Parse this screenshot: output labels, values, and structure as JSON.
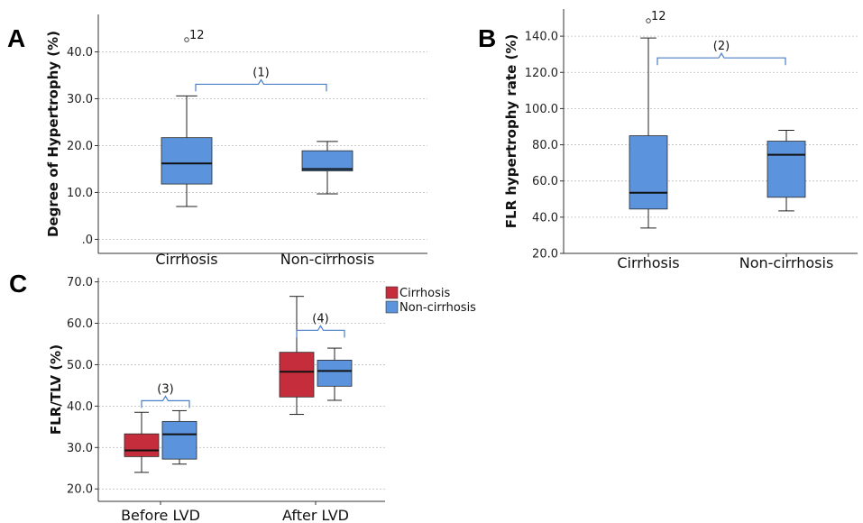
{
  "colors": {
    "cirrhosis": "#c62d3c",
    "non_cirrhosis": "#5b93dc",
    "bracket": "#4a7fc8"
  },
  "chart_data": [
    {
      "panel": "A",
      "type": "box",
      "ylabel": "Degree of Hypertrophy (%)",
      "ylim": [
        -3,
        48
      ],
      "yticks": [
        ".0",
        "10.0",
        "20.0",
        "30.0",
        "40.0"
      ],
      "ytick_values": [
        0,
        10,
        20,
        30,
        40
      ],
      "categories": [
        "Cirrhosis",
        "Non-cirrhosis"
      ],
      "boxes": [
        {
          "min": 7.0,
          "q1": 11.8,
          "median": 16.2,
          "q3": 21.7,
          "max": 30.6,
          "color": "non_cirrhosis"
        },
        {
          "min": 9.7,
          "q1": 14.6,
          "median": 15.0,
          "q3": 18.9,
          "max": 20.9,
          "color": "non_cirrhosis"
        }
      ],
      "outliers": [
        {
          "category": 0,
          "value": 42.6,
          "label": "12"
        }
      ],
      "brackets": [
        {
          "from": 0,
          "to": 1,
          "y": 33.1,
          "label": "(1)"
        }
      ]
    },
    {
      "panel": "B",
      "type": "box",
      "ylabel": "FLR hypertrophy rate (%)",
      "ylim": [
        20,
        155
      ],
      "yticks": [
        "20.0",
        "40.0",
        "60.0",
        "80.0",
        "100.0",
        "120.0",
        "140.0"
      ],
      "ytick_values": [
        20,
        40,
        60,
        80,
        100,
        120,
        140
      ],
      "categories": [
        "Cirrhosis",
        "Non-cirrhosis"
      ],
      "boxes": [
        {
          "min": 34.0,
          "q1": 44.5,
          "median": 53.5,
          "q3": 85.0,
          "max": 139.0,
          "color": "non_cirrhosis"
        },
        {
          "min": 43.5,
          "q1": 51.0,
          "median": 74.5,
          "q3": 82.0,
          "max": 88.0,
          "color": "non_cirrhosis"
        }
      ],
      "outliers": [
        {
          "category": 0,
          "value": 148.5,
          "label": "12"
        }
      ],
      "brackets": [
        {
          "from": 0,
          "to": 1,
          "y": 128.0,
          "label": "(2)"
        }
      ]
    },
    {
      "panel": "C",
      "type": "box",
      "ylabel": "FLR/TLV (%)",
      "ylim": [
        17,
        71
      ],
      "yticks": [
        "20.0",
        "30.0",
        "40.0",
        "50.0",
        "60.0",
        "70.0"
      ],
      "ytick_values": [
        20,
        30,
        40,
        50,
        60,
        70
      ],
      "categories": [
        "Before LVD",
        "After LVD"
      ],
      "legend": {
        "position": "top-right",
        "entries": [
          {
            "name": "Cirrhosis",
            "color": "cirrhosis"
          },
          {
            "name": "Non-cirrhosis",
            "color": "non_cirrhosis"
          }
        ]
      },
      "series": [
        {
          "name": "Cirrhosis",
          "color": "cirrhosis",
          "boxes": [
            {
              "min": 24.0,
              "q1": 27.8,
              "median": 29.3,
              "q3": 33.3,
              "max": 38.5
            },
            {
              "min": 38.0,
              "q1": 42.2,
              "median": 48.3,
              "q3": 53.0,
              "max": 66.5
            }
          ]
        },
        {
          "name": "Non-cirrhosis",
          "color": "non_cirrhosis",
          "boxes": [
            {
              "min": 26.0,
              "q1": 27.2,
              "median": 33.2,
              "q3": 36.3,
              "max": 38.9
            },
            {
              "min": 41.4,
              "q1": 44.8,
              "median": 48.5,
              "q3": 51.1,
              "max": 54.0
            }
          ]
        }
      ],
      "brackets": [
        {
          "category": 0,
          "y": 41.3,
          "label": "(3)"
        },
        {
          "category": 1,
          "y": 58.3,
          "label": "(4)"
        }
      ]
    }
  ]
}
